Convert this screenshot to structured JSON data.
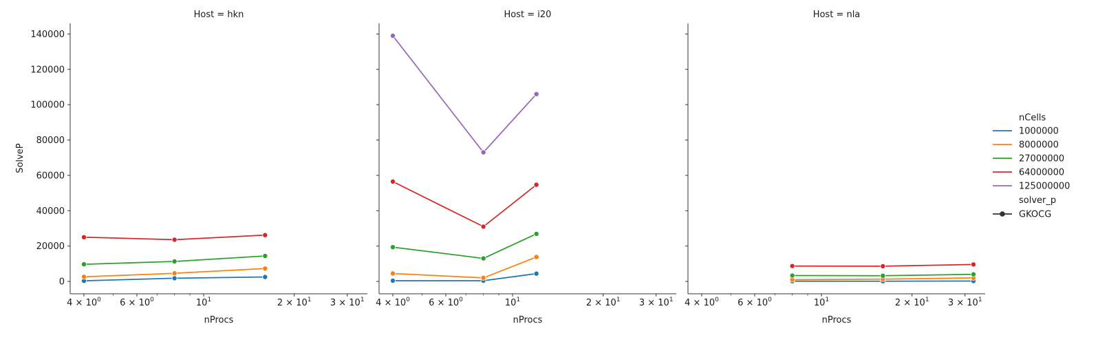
{
  "figure": {
    "y_axis_label": "SolveP",
    "x_axis_label": "nProcs"
  },
  "legend": {
    "title_hue": "nCells",
    "title_style": "solver_p",
    "style_entry": "GKOCG"
  },
  "chart_data": [
    {
      "type": "line",
      "title": "Host = hkn",
      "xlabel": "nProcs",
      "ylabel": "SolveP",
      "xscale": "log",
      "xlim": [
        3.6,
        35
      ],
      "ylim": [
        -7000,
        146000
      ],
      "x_ticks": [
        4,
        6,
        10,
        20,
        30
      ],
      "x_tick_labels": [
        "4 × 10^0",
        "6 × 10^0",
        "10^1",
        "2 × 10^1",
        "3 × 10^1"
      ],
      "y_ticks": [
        0,
        20000,
        40000,
        60000,
        80000,
        100000,
        120000,
        140000
      ],
      "y_tick_labels": [
        "0",
        "20000",
        "40000",
        "60000",
        "80000",
        "100000",
        "120000",
        "140000"
      ],
      "grid": false,
      "series": [
        {
          "name": "1000000",
          "color": "#1f77b4",
          "x": [
            4,
            8,
            16
          ],
          "y": [
            300,
            1800,
            2500
          ]
        },
        {
          "name": "8000000",
          "color": "#ff7f0e",
          "x": [
            4,
            8,
            16
          ],
          "y": [
            2600,
            4600,
            7300
          ]
        },
        {
          "name": "27000000",
          "color": "#2ca02c",
          "x": [
            4,
            8,
            16
          ],
          "y": [
            9700,
            11300,
            14400
          ]
        },
        {
          "name": "64000000",
          "color": "#d62728",
          "x": [
            4,
            8,
            16
          ],
          "y": [
            25000,
            23600,
            26200
          ]
        }
      ]
    },
    {
      "type": "line",
      "title": "Host = i20",
      "xlabel": "nProcs",
      "ylabel": "",
      "xscale": "log",
      "xlim": [
        3.6,
        35
      ],
      "ylim": [
        -7000,
        146000
      ],
      "x_ticks": [
        4,
        6,
        10,
        20,
        30
      ],
      "x_tick_labels": [
        "4 × 10^0",
        "6 × 10^0",
        "10^1",
        "2 × 10^1",
        "3 × 10^1"
      ],
      "y_ticks": [
        0,
        20000,
        40000,
        60000,
        80000,
        100000,
        120000,
        140000
      ],
      "y_tick_labels": [],
      "grid": false,
      "series": [
        {
          "name": "1000000",
          "color": "#1f77b4",
          "x": [
            4,
            8,
            12
          ],
          "y": [
            400,
            400,
            4400
          ]
        },
        {
          "name": "8000000",
          "color": "#ff7f0e",
          "x": [
            4,
            8,
            12
          ],
          "y": [
            4500,
            2000,
            13800
          ]
        },
        {
          "name": "27000000",
          "color": "#2ca02c",
          "x": [
            4,
            8,
            12
          ],
          "y": [
            19400,
            13000,
            26900
          ]
        },
        {
          "name": "64000000",
          "color": "#d62728",
          "x": [
            4,
            8,
            12
          ],
          "y": [
            56500,
            31000,
            54700
          ]
        },
        {
          "name": "125000000",
          "color": "#9467bd",
          "x": [
            4,
            8,
            12
          ],
          "y": [
            139000,
            73000,
            106000
          ]
        }
      ]
    },
    {
      "type": "line",
      "title": "Host = nla",
      "xlabel": "nProcs",
      "ylabel": "",
      "xscale": "log",
      "xlim": [
        3.6,
        35
      ],
      "ylim": [
        -7000,
        146000
      ],
      "x_ticks": [
        4,
        6,
        10,
        20,
        30
      ],
      "x_tick_labels": [
        "4 × 10^0",
        "6 × 10^0",
        "10^1",
        "2 × 10^1",
        "3 × 10^1"
      ],
      "y_ticks": [
        0,
        20000,
        40000,
        60000,
        80000,
        100000,
        120000,
        140000
      ],
      "y_tick_labels": [],
      "grid": false,
      "series": [
        {
          "name": "1000000",
          "color": "#1f77b4",
          "x": [
            8,
            16,
            32
          ],
          "y": [
            100,
            100,
            200
          ]
        },
        {
          "name": "8000000",
          "color": "#ff7f0e",
          "x": [
            8,
            16,
            32
          ],
          "y": [
            1000,
            1300,
            2000
          ]
        },
        {
          "name": "27000000",
          "color": "#2ca02c",
          "x": [
            8,
            16,
            32
          ],
          "y": [
            3300,
            3200,
            4000
          ]
        },
        {
          "name": "64000000",
          "color": "#d62728",
          "x": [
            8,
            16,
            32
          ],
          "y": [
            8700,
            8600,
            9600
          ]
        }
      ]
    }
  ]
}
